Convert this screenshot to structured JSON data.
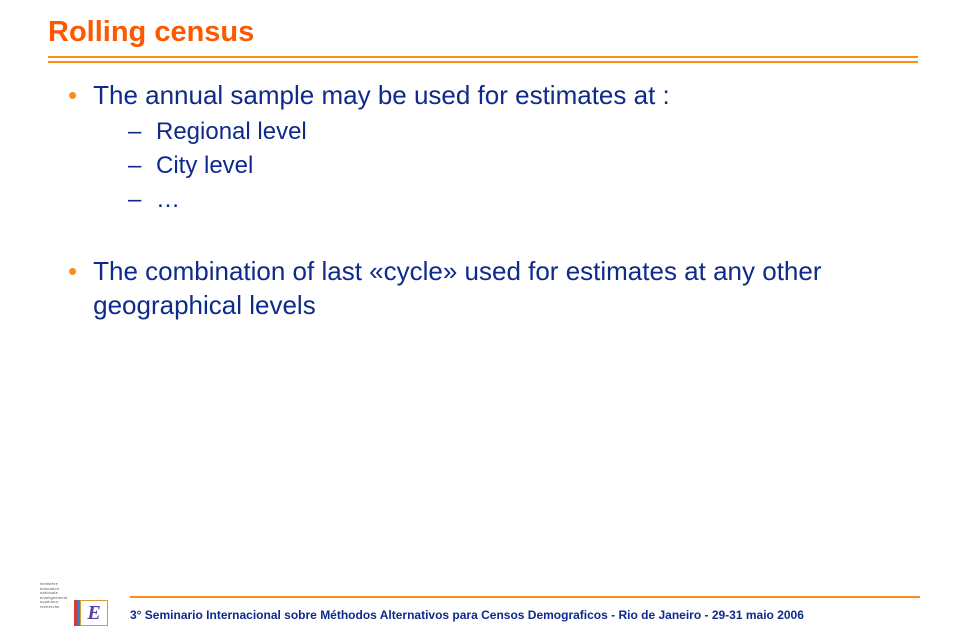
{
  "colors": {
    "accent_orange": "#ff8c1a",
    "title_orange": "#ff5900",
    "body_blue": "#0e2a8a",
    "background": "#ffffff"
  },
  "typography": {
    "title_fontsize": 29,
    "title_weight": "bold",
    "body_fontsize": 26,
    "sub_fontsize": 24,
    "footer_fontsize": 12,
    "family": "Verdana"
  },
  "title": "Rolling census",
  "bullets": {
    "b1": {
      "text": "The annual sample may be used for estimates at :",
      "subs": {
        "s1": "Regional level",
        "s2": "City level",
        "s3": "…"
      }
    },
    "b2": {
      "text": "The combination of last «cycle» used for estimates at any other geographical levels"
    }
  },
  "bullet_marker": "•",
  "dash_marker": "–",
  "footer": "3° Seminario Internacional sobre Méthodos Alternativos para Censos Demograficos - Rio de Janeiro - 29-31 maio 2006",
  "logo": {
    "line1": "ministère",
    "line2": "éducation",
    "line3": "nationale",
    "line4": "enseignement",
    "line5": "supérieur",
    "line6": "recherche",
    "letter": "E"
  }
}
